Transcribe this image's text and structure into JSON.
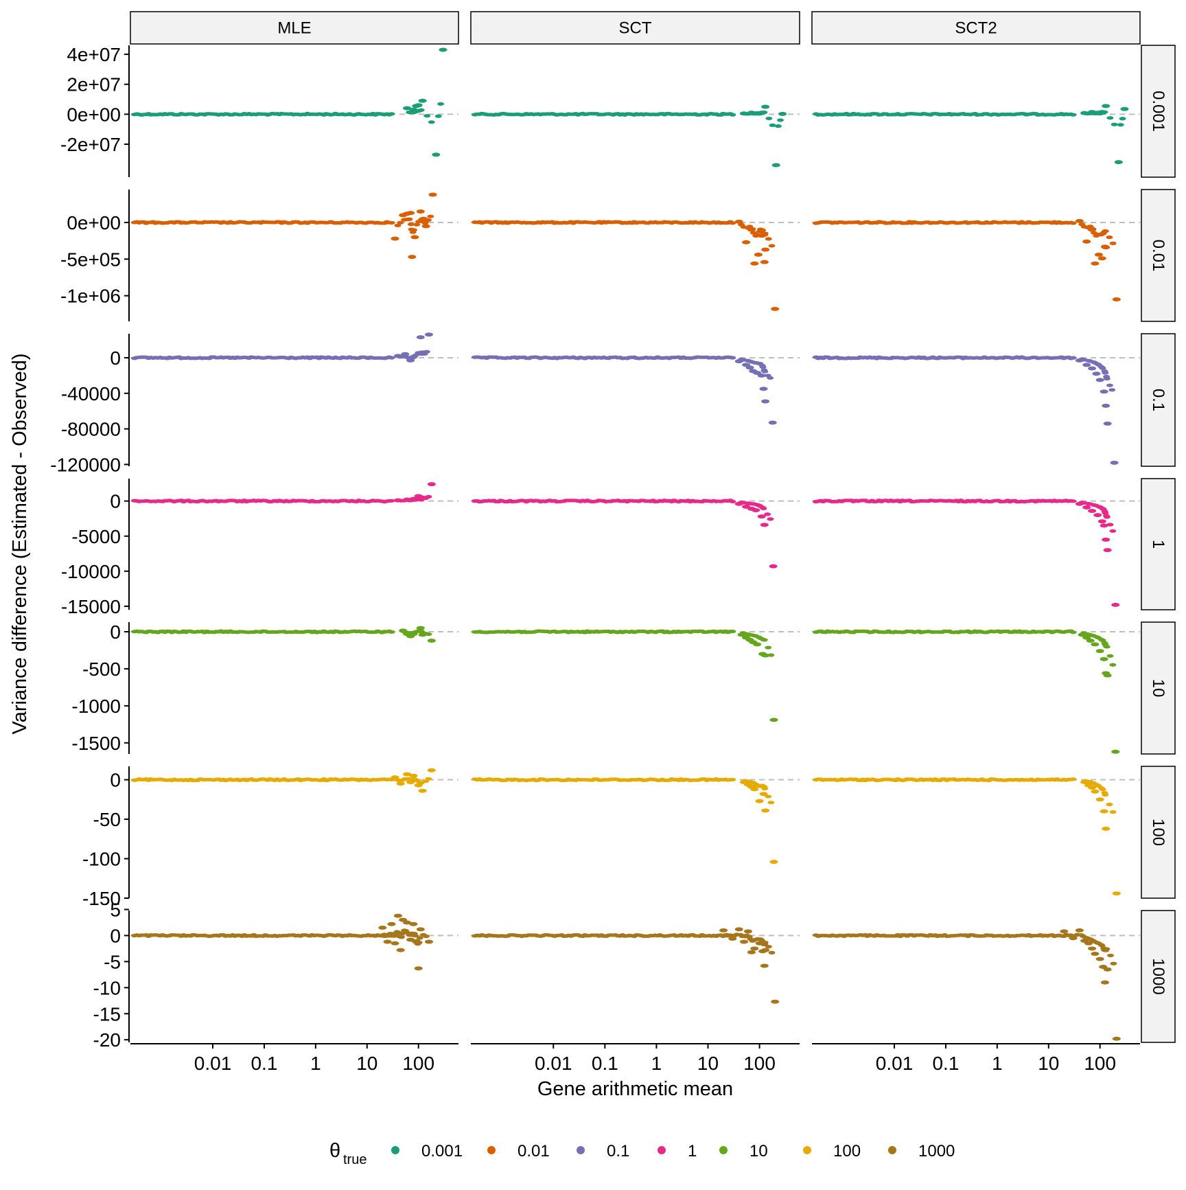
{
  "chart_data": {
    "type": "scatter",
    "xlabel": "Gene arithmetic mean",
    "ylabel": "Variance difference (Estimated - Observed)",
    "x_scale": "log10",
    "xlim": [
      0.00025,
      600
    ],
    "x_ticks": [
      0.01,
      0.1,
      1,
      10,
      100
    ],
    "x_tick_labels": [
      "0.01",
      "0.1",
      "1",
      "10",
      "100"
    ],
    "reference_line": {
      "y": 0,
      "style": "dashed",
      "color": "#bebebe"
    },
    "columns": [
      "MLE",
      "SCT",
      "SCT2"
    ],
    "legend": {
      "title_symbol": "θ",
      "title_subscript": "true",
      "position": "bottom",
      "entries": [
        {
          "label": "0.001",
          "color": "#1b9e77"
        },
        {
          "label": "0.01",
          "color": "#d95f02"
        },
        {
          "label": "0.1",
          "color": "#7570b3"
        },
        {
          "label": "1",
          "color": "#e7298a"
        },
        {
          "label": "10",
          "color": "#66a61e"
        },
        {
          "label": "100",
          "color": "#e6ab02"
        },
        {
          "label": "1000",
          "color": "#a6761d"
        }
      ]
    },
    "rows": [
      {
        "label": "0.001",
        "color": "#1b9e77",
        "ylim": [
          -42000000,
          46000000
        ],
        "y_ticks": [
          40000000,
          20000000,
          0,
          -20000000
        ],
        "y_tick_labels": [
          "4e+07",
          "2e+07",
          "0e+00",
          "-2e+07"
        ],
        "panels": {
          "MLE": {
            "tail": [
              [
                60,
                4000000
              ],
              [
                80,
                3000000
              ],
              [
                90,
                5500000
              ],
              [
                100,
                6000000
              ],
              [
                120,
                9000000
              ],
              [
                220,
                -27000000
              ],
              [
                300,
                43000000
              ]
            ]
          },
          "SCT": {
            "tail": [
              [
                50,
                500000
              ],
              [
                70,
                1000000
              ],
              [
                90,
                700000
              ],
              [
                110,
                1000000
              ],
              [
                130,
                5000000
              ],
              [
                210,
                -34000000
              ],
              [
                280,
                200000
              ]
            ]
          },
          "SCT2": {
            "tail": [
              [
                50,
                800000
              ],
              [
                70,
                1500000
              ],
              [
                90,
                1000000
              ],
              [
                110,
                1500000
              ],
              [
                130,
                5500000
              ],
              [
                230,
                -32000000
              ],
              [
                300,
                3500000
              ]
            ]
          }
        }
      },
      {
        "label": "0.01",
        "color": "#d95f02",
        "ylim": [
          -1350000,
          450000
        ],
        "y_ticks": [
          0,
          -500000,
          -1000000
        ],
        "y_tick_labels": [
          "0e+00",
          "-5e+05",
          "-1e+06"
        ],
        "panels": {
          "MLE": {
            "tail": [
              [
                35,
                -220000
              ],
              [
                50,
                100000
              ],
              [
                60,
                120000
              ],
              [
                70,
                130000
              ],
              [
                75,
                -470000
              ],
              [
                85,
                -200000
              ],
              [
                110,
                150000
              ],
              [
                125,
                50000
              ],
              [
                140,
                -50000
              ],
              [
                190,
                380000
              ]
            ]
          },
          "SCT": {
            "tail": [
              [
                40,
                10000
              ],
              [
                55,
                -270000
              ],
              [
                70,
                -100000
              ],
              [
                80,
                -560000
              ],
              [
                95,
                -440000
              ],
              [
                110,
                -180000
              ],
              [
                125,
                -540000
              ],
              [
                130,
                -370000
              ],
              [
                200,
                -1180000
              ]
            ]
          },
          "SCT2": {
            "tail": [
              [
                40,
                20000
              ],
              [
                55,
                -260000
              ],
              [
                70,
                -100000
              ],
              [
                80,
                -560000
              ],
              [
                95,
                -440000
              ],
              [
                110,
                -490000
              ],
              [
                125,
                -330000
              ],
              [
                130,
                -340000
              ],
              [
                210,
                -1050000
              ]
            ]
          }
        }
      },
      {
        "label": "0.1",
        "color": "#7570b3",
        "ylim": [
          -122000,
          27000
        ],
        "y_ticks": [
          0,
          -40000,
          -80000,
          -120000
        ],
        "y_tick_labels": [
          "0",
          "-40000",
          "-80000",
          "-120000"
        ],
        "panels": {
          "MLE": {
            "tail": [
              [
                40,
                2000
              ],
              [
                55,
                4000
              ],
              [
                70,
                -3000
              ],
              [
                80,
                1000
              ],
              [
                110,
                23000
              ],
              [
                120,
                6000
              ],
              [
                160,
                26000
              ]
            ]
          },
          "SCT": {
            "tail": [
              [
                40,
                -4000
              ],
              [
                55,
                -8000
              ],
              [
                65,
                -11000
              ],
              [
                75,
                -15000
              ],
              [
                90,
                -17000
              ],
              [
                110,
                -20000
              ],
              [
                120,
                -35000
              ],
              [
                130,
                -49000
              ],
              [
                180,
                -73000
              ]
            ]
          },
          "SCT2": {
            "tail": [
              [
                40,
                -3000
              ],
              [
                55,
                -8000
              ],
              [
                70,
                -12000
              ],
              [
                85,
                -18000
              ],
              [
                100,
                -25000
              ],
              [
                120,
                -38000
              ],
              [
                130,
                -54000
              ],
              [
                140,
                -74000
              ],
              [
                190,
                -118000
              ]
            ]
          }
        }
      },
      {
        "label": "1",
        "color": "#e7298a",
        "ylim": [
          -15500,
          3200
        ],
        "y_ticks": [
          0,
          -5000,
          -10000,
          -15000
        ],
        "y_tick_labels": [
          "0",
          "-5000",
          "-10000",
          "-15000"
        ],
        "panels": {
          "MLE": {
            "tail": [
              [
                40,
                100
              ],
              [
                60,
                200
              ],
              [
                80,
                300
              ],
              [
                100,
                700
              ],
              [
                120,
                500
              ],
              [
                180,
                2400
              ]
            ]
          },
          "SCT": {
            "tail": [
              [
                40,
                -400
              ],
              [
                55,
                -800
              ],
              [
                70,
                -1100
              ],
              [
                85,
                -1300
              ],
              [
                110,
                -2200
              ],
              [
                125,
                -3400
              ],
              [
                185,
                -9300
              ]
            ]
          },
          "SCT2": {
            "tail": [
              [
                40,
                -400
              ],
              [
                55,
                -900
              ],
              [
                70,
                -1400
              ],
              [
                90,
                -2000
              ],
              [
                110,
                -2900
              ],
              [
                120,
                -3500
              ],
              [
                130,
                -5500
              ],
              [
                140,
                -7000
              ],
              [
                200,
                -14800
              ]
            ]
          }
        }
      },
      {
        "label": "10",
        "color": "#66a61e",
        "ylim": [
          -1650,
          130
        ],
        "y_ticks": [
          0,
          -500,
          -1000,
          -1500
        ],
        "y_tick_labels": [
          "0",
          "-500",
          "-1000",
          "-1500"
        ],
        "panels": {
          "MLE": {
            "tail": [
              [
                50,
                15
              ],
              [
                60,
                -30
              ],
              [
                70,
                -60
              ],
              [
                80,
                -30
              ],
              [
                110,
                50
              ],
              [
                120,
                -40
              ],
              [
                180,
                -120
              ]
            ]
          },
          "SCT": {
            "tail": [
              [
                45,
                -40
              ],
              [
                55,
                -80
              ],
              [
                65,
                -110
              ],
              [
                75,
                -140
              ],
              [
                90,
                -170
              ],
              [
                115,
                -300
              ],
              [
                130,
                -320
              ],
              [
                190,
                -1190
              ]
            ]
          },
          "SCT2": {
            "tail": [
              [
                45,
                -40
              ],
              [
                55,
                -80
              ],
              [
                65,
                -120
              ],
              [
                80,
                -170
              ],
              [
                100,
                -260
              ],
              [
                120,
                -370
              ],
              [
                130,
                -560
              ],
              [
                140,
                -590
              ],
              [
                200,
                -1620
              ]
            ]
          }
        }
      },
      {
        "label": "100",
        "color": "#e6ab02",
        "ylim": [
          -150,
          17
        ],
        "y_ticks": [
          0,
          -50,
          -100,
          -150
        ],
        "y_tick_labels": [
          "0",
          "-50",
          "-100",
          "-150"
        ],
        "panels": {
          "MLE": {
            "tail": [
              [
                35,
                3
              ],
              [
                45,
                -5
              ],
              [
                60,
                7
              ],
              [
                70,
                -3
              ],
              [
                80,
                5
              ],
              [
                100,
                -7
              ],
              [
                120,
                -14
              ],
              [
                180,
                12
              ]
            ]
          },
          "SCT": {
            "tail": [
              [
                50,
                -3
              ],
              [
                60,
                -6
              ],
              [
                70,
                -9
              ],
              [
                80,
                -12
              ],
              [
                100,
                -27
              ],
              [
                120,
                -18
              ],
              [
                130,
                -39
              ],
              [
                190,
                -104
              ]
            ]
          },
          "SCT2": {
            "tail": [
              [
                50,
                -3
              ],
              [
                60,
                -7
              ],
              [
                70,
                -10
              ],
              [
                80,
                -15
              ],
              [
                100,
                -25
              ],
              [
                120,
                -40
              ],
              [
                130,
                -62
              ],
              [
                210,
                -144
              ]
            ]
          }
        }
      },
      {
        "label": "1000",
        "color": "#a6761d",
        "ylim": [
          -20.5,
          4.8
        ],
        "y_ticks": [
          5,
          0,
          -5,
          -10,
          -15,
          -20
        ],
        "y_tick_labels": [
          "5",
          "0",
          "-5",
          "-10",
          "-15",
          "-20"
        ],
        "panels": {
          "MLE": {
            "tail": [
              [
                20,
                1.5
              ],
              [
                25,
                -1.2
              ],
              [
                30,
                2.2
              ],
              [
                35,
                -1.5
              ],
              [
                40,
                3.8
              ],
              [
                45,
                -2.8
              ],
              [
                50,
                3.0
              ],
              [
                60,
                2.5
              ],
              [
                70,
                -0.8
              ],
              [
                80,
                2.2
              ],
              [
                90,
                -1.2
              ],
              [
                100,
                -6.3
              ],
              [
                110,
                1.2
              ],
              [
                160,
                -1.2
              ]
            ]
          },
          "SCT": {
            "tail": [
              [
                20,
                1.0
              ],
              [
                30,
                -0.6
              ],
              [
                40,
                1.2
              ],
              [
                50,
                -1.2
              ],
              [
                60,
                0.8
              ],
              [
                70,
                -3.2
              ],
              [
                80,
                -2.5
              ],
              [
                100,
                -1.5
              ],
              [
                115,
                -3.0
              ],
              [
                125,
                -5.8
              ],
              [
                130,
                -2.8
              ],
              [
                200,
                -12.7
              ]
            ]
          },
          "SCT2": {
            "tail": [
              [
                20,
                0.8
              ],
              [
                30,
                -0.5
              ],
              [
                40,
                1.0
              ],
              [
                50,
                -1.0
              ],
              [
                60,
                -1.5
              ],
              [
                70,
                -2.5
              ],
              [
                80,
                -3.5
              ],
              [
                100,
                -4.5
              ],
              [
                115,
                -6.0
              ],
              [
                125,
                -9.0
              ],
              [
                140,
                -6.5
              ],
              [
                210,
                -19.8
              ]
            ]
          }
        }
      }
    ]
  }
}
